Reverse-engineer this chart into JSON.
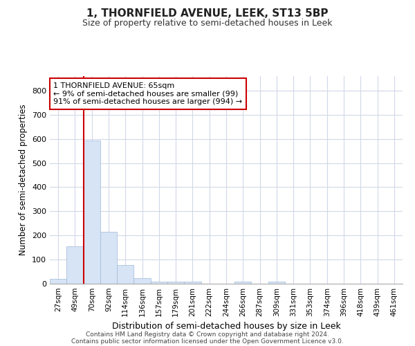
{
  "title": "1, THORNFIELD AVENUE, LEEK, ST13 5BP",
  "subtitle": "Size of property relative to semi-detached houses in Leek",
  "xlabel": "Distribution of semi-detached houses by size in Leek",
  "ylabel": "Number of semi-detached properties",
  "bar_labels": [
    "27sqm",
    "49sqm",
    "70sqm",
    "92sqm",
    "114sqm",
    "136sqm",
    "157sqm",
    "179sqm",
    "201sqm",
    "222sqm",
    "244sqm",
    "266sqm",
    "287sqm",
    "309sqm",
    "331sqm",
    "353sqm",
    "374sqm",
    "396sqm",
    "418sqm",
    "439sqm",
    "461sqm"
  ],
  "bar_values": [
    20,
    155,
    592,
    215,
    78,
    24,
    10,
    8,
    8,
    0,
    0,
    10,
    0,
    8,
    0,
    0,
    0,
    0,
    0,
    0,
    0
  ],
  "bar_color": "#d6e4f5",
  "bar_edge_color": "#a0b8d8",
  "highlight_color": "#cc0000",
  "annotation_line1": "1 THORNFIELD AVENUE: 65sqm",
  "annotation_line2": "← 9% of semi-detached houses are smaller (99)",
  "annotation_line3": "91% of semi-detached houses are larger (994) →",
  "annotation_box_color": "#ffffff",
  "annotation_box_edge": "#cc0000",
  "ylim": [
    0,
    860
  ],
  "yticks": [
    0,
    100,
    200,
    300,
    400,
    500,
    600,
    700,
    800
  ],
  "bg_color": "#ffffff",
  "plot_bg_color": "#ffffff",
  "grid_color": "#d0d8e8",
  "footer_line1": "Contains HM Land Registry data © Crown copyright and database right 2024.",
  "footer_line2": "Contains public sector information licensed under the Open Government Licence v3.0."
}
